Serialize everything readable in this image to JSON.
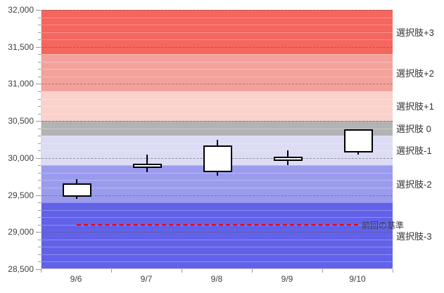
{
  "chart_data": {
    "type": "candlestick",
    "x_categories": [
      "9/6",
      "9/7",
      "9/8",
      "9/9",
      "9/10"
    ],
    "candles": [
      {
        "date": "9/6",
        "open": 29480,
        "high": 29710,
        "low": 29450,
        "close": 29660
      },
      {
        "date": "9/7",
        "open": 29870,
        "high": 30050,
        "low": 29810,
        "close": 29920
      },
      {
        "date": "9/8",
        "open": 29810,
        "high": 30250,
        "low": 29760,
        "close": 30170
      },
      {
        "date": "9/9",
        "open": 29960,
        "high": 30100,
        "low": 29900,
        "close": 30020
      },
      {
        "date": "9/10",
        "open": 30070,
        "high": 30390,
        "low": 30050,
        "close": 30390
      }
    ],
    "candle_body_color": "#ffffff",
    "candle_border_color": "#000000",
    "bands": [
      {
        "label": "選択肢+3",
        "from": 31400,
        "to": 32000,
        "color": "#f4665e"
      },
      {
        "label": "選択肢+2",
        "from": 30900,
        "to": 31400,
        "color": "#f3a29b"
      },
      {
        "label": "選択肢+1",
        "from": 30500,
        "to": 30900,
        "color": "#fbd1cb"
      },
      {
        "label": "選択肢 0",
        "from": 30300,
        "to": 30500,
        "color": "#b3b2b4"
      },
      {
        "label": "選択肢-1",
        "from": 29900,
        "to": 30300,
        "color": "#dcdcf5"
      },
      {
        "label": "選択肢-2",
        "from": 29400,
        "to": 29900,
        "color": "#9b9bee"
      },
      {
        "label": "選択肢-3",
        "from": 28500,
        "to": 29400,
        "color": "#6262e9"
      }
    ],
    "reference_line": {
      "label": "前回の基準",
      "value": 29100,
      "color": "#ff0000",
      "style": "dashed",
      "x_start_category": "9/6",
      "x_end_category": "9/10"
    },
    "y_axis": {
      "min": 28500,
      "max": 32000,
      "major_step": 500,
      "minor_step": 100,
      "tick_labels": [
        "32,000",
        "31,500",
        "31,000",
        "30,500",
        "30,000",
        "29,500",
        "29,000",
        "28,500"
      ]
    },
    "grid": {
      "major": "dashed",
      "minor": "solid-faint"
    },
    "legend_position": "right",
    "title": ""
  },
  "colors": {
    "background": "#ffffff",
    "tick_text": "#404040",
    "band_label_text": "#333333",
    "reference_line": "#ff0000"
  }
}
